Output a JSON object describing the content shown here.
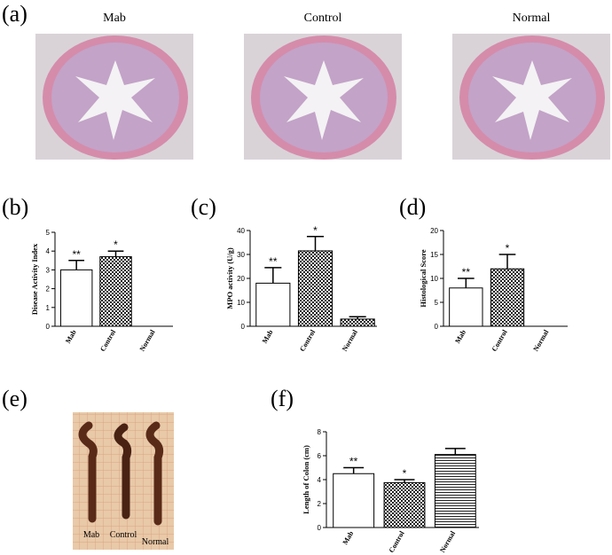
{
  "panels": {
    "a": {
      "label": "(a)",
      "captions": [
        "Mab",
        "Control",
        "Normal"
      ]
    },
    "b": {
      "label": "(b)"
    },
    "c": {
      "label": "(c)"
    },
    "d": {
      "label": "(d)"
    },
    "e": {
      "label": "(e)",
      "photo_labels": [
        "Mab",
        "Control",
        "Normal"
      ]
    },
    "f": {
      "label": "(f)"
    }
  },
  "chart_data": [
    {
      "type": "bar",
      "y_label": "Disease Activity Index",
      "categories": [
        "Mab",
        "Control",
        "Normal"
      ],
      "values": [
        3.0,
        3.7,
        0
      ],
      "errors": [
        0.5,
        0.3,
        0
      ],
      "annotations": [
        "**",
        "*"
      ],
      "patterns": [
        "none",
        "checker",
        "checker"
      ],
      "ylim": [
        0,
        5
      ],
      "yticks": [
        0,
        1,
        2,
        3,
        4,
        5
      ]
    },
    {
      "type": "bar",
      "y_label": "MPO activity (U/g)",
      "categories": [
        "Mab",
        "Control",
        "Normal"
      ],
      "values": [
        18,
        31.5,
        3
      ],
      "errors": [
        6.5,
        6,
        1
      ],
      "annotations": [
        "**",
        "*"
      ],
      "patterns": [
        "none",
        "checker",
        "checker"
      ],
      "ylim": [
        0,
        40
      ],
      "yticks": [
        0,
        10,
        20,
        30,
        40
      ]
    },
    {
      "type": "bar",
      "y_label": "Histological Score",
      "categories": [
        "Mab",
        "Control",
        "Normal"
      ],
      "values": [
        8,
        12,
        0
      ],
      "errors": [
        2,
        3,
        0
      ],
      "annotations": [
        "**",
        "*"
      ],
      "patterns": [
        "none",
        "checker",
        "checker"
      ],
      "ylim": [
        0,
        20
      ],
      "yticks": [
        0,
        5,
        10,
        15,
        20
      ]
    },
    {
      "type": "bar",
      "y_label": "Length of Colon (cm)",
      "categories": [
        "Mab",
        "Control",
        "Normal"
      ],
      "values": [
        4.5,
        3.75,
        6.1
      ],
      "errors": [
        0.5,
        0.25,
        0.5
      ],
      "annotations": [
        "**",
        "*"
      ],
      "patterns": [
        "none",
        "checker",
        "hlines"
      ],
      "ylim": [
        0,
        8
      ],
      "yticks": [
        0,
        2,
        4,
        6,
        8
      ]
    }
  ]
}
